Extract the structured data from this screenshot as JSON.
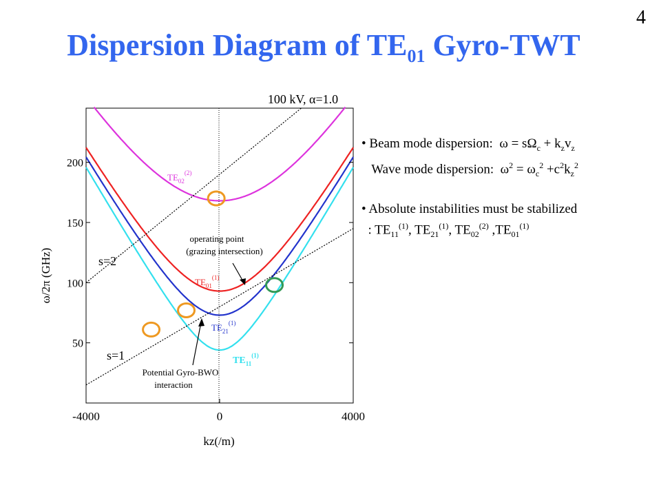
{
  "slide_number": "4",
  "title": {
    "main": "Dispersion Diagram of TE",
    "sub": "01",
    "tail": " Gyro-TWT"
  },
  "plot_header": "100 kV, α=1.0",
  "bullets": {
    "beam_label": "Beam mode dispersion:",
    "beam_eq": "ω = sΩc + kzvz",
    "wave_label": "Wave mode dispersion:",
    "wave_eq": "ω2 = ωc2 +c2kz2",
    "abs_line1": "Absolute instabilities must be stabilized",
    "abs_line2": ": TE11(1), TE21(1), TE02(2) ,TE01(1)"
  },
  "annotations": {
    "operating_1": "operating point",
    "operating_2": "(grazing intersection)",
    "bwo_1": "Potential Gyro-BWO",
    "bwo_2": "interaction",
    "s1": "s=1",
    "s2": "s=2"
  },
  "colors": {
    "title": "#3366ee",
    "TE02": "#dd33dd",
    "TE01": "#ee2222",
    "TE21": "#2233cc",
    "TE11": "#33e0ee",
    "beam_line": "#000000",
    "marker_orange": "#ee9922",
    "marker_green": "#339955"
  },
  "chart_data": {
    "type": "line",
    "xlabel": "kz(/m)",
    "ylabel": "ω/2π (GHz)",
    "xlim": [
      -4000,
      4000
    ],
    "ylim": [
      0,
      245
    ],
    "x_ticks": [
      -4000,
      0,
      4000
    ],
    "y_ticks": [
      50,
      100,
      150,
      200
    ],
    "grid": false,
    "series": [
      {
        "name": "TE02(2)",
        "label_main": "TE",
        "label_sub": "02",
        "label_sup": "(2)",
        "cutoff_ghz": 168,
        "color": "#dd33dd"
      },
      {
        "name": "TE01(1)",
        "label_main": "TE",
        "label_sub": "01",
        "label_sup": "(1)",
        "cutoff_ghz": 93,
        "color": "#ee2222"
      },
      {
        "name": "TE21(1)",
        "label_main": "TE",
        "label_sub": "21",
        "label_sup": "(1)",
        "cutoff_ghz": 73,
        "color": "#2233cc"
      },
      {
        "name": "TE11(1)",
        "label_main": "TE",
        "label_sub": "11",
        "label_sup": "(1)",
        "cutoff_ghz": 44,
        "color": "#33e0ee"
      }
    ],
    "beam_lines": [
      {
        "name": "s=1",
        "x": [
          -4000,
          4000
        ],
        "y": [
          15,
          145
        ]
      },
      {
        "name": "s=2",
        "x": [
          -4000,
          4000
        ],
        "y": [
          100,
          280
        ]
      }
    ],
    "markers": [
      {
        "x": -100,
        "y": 170,
        "color": "#ee9922"
      },
      {
        "x": -1000,
        "y": 77,
        "color": "#ee9922"
      },
      {
        "x": -2050,
        "y": 61,
        "color": "#ee9922"
      },
      {
        "x": 1640,
        "y": 98,
        "color": "#339955"
      }
    ]
  }
}
